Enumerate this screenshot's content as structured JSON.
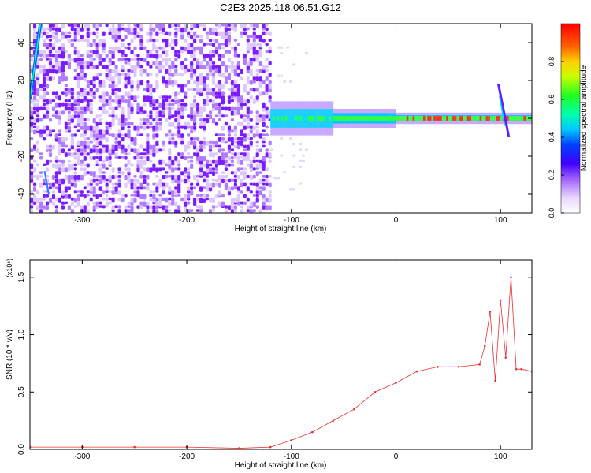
{
  "title": "C2E3.2025.118.06.51.G12",
  "chart_data": [
    {
      "type": "heatmap",
      "xlabel": "Height of straight line (km)",
      "ylabel": "Frequency (Hz)",
      "xlim": [
        -350,
        130
      ],
      "ylim": [
        -50,
        50
      ],
      "xticks": [
        -300,
        -200,
        -100,
        0,
        100
      ],
      "yticks": [
        -40,
        -20,
        0,
        20,
        40
      ],
      "colorbar": {
        "label": "Normalized spectral amplitude",
        "range": [
          0,
          1
        ],
        "ticks": [
          0.0,
          0.2,
          0.4,
          0.6,
          0.8
        ]
      },
      "features": {
        "noise_region_x": [
          -350,
          -120
        ],
        "signal_region_x": [
          -120,
          130
        ],
        "signal_frequency_hz": 0,
        "peak_spike_x": 100
      }
    },
    {
      "type": "line",
      "xlabel": "Height of straight line (km)",
      "ylabel": "SNR (10 * v/v)",
      "multiplier": "(x10⁴)",
      "xlim": [
        -350,
        130
      ],
      "ylim": [
        0,
        1.65
      ],
      "xticks": [
        -300,
        -200,
        -100,
        0,
        100
      ],
      "yticks": [
        0.0,
        0.5,
        1.0,
        1.5
      ],
      "color": "#e83030",
      "series": [
        {
          "x": [
            -350,
            -300,
            -250,
            -200,
            -150,
            -120,
            -100,
            -80,
            -60,
            -40,
            -20,
            0,
            20,
            40,
            60,
            80,
            85,
            90,
            95,
            100,
            105,
            110,
            115,
            120,
            130
          ],
          "y": [
            0.02,
            0.02,
            0.02,
            0.02,
            0.01,
            0.02,
            0.08,
            0.15,
            0.25,
            0.35,
            0.5,
            0.58,
            0.68,
            0.72,
            0.72,
            0.74,
            0.9,
            1.2,
            0.6,
            1.3,
            0.8,
            1.5,
            0.7,
            0.7,
            0.68
          ]
        }
      ]
    }
  ]
}
